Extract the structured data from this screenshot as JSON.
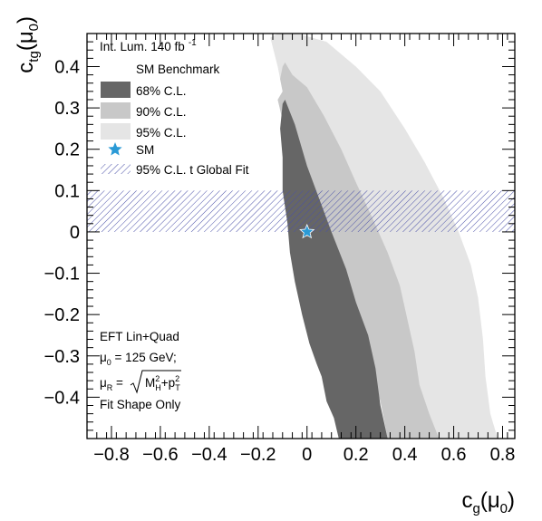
{
  "chart_data": {
    "type": "contour",
    "xlabel": {
      "main": "c",
      "sub": "g",
      "arg": "(μ",
      "arg_sub": "0",
      "close": ")"
    },
    "ylabel": {
      "main": "c",
      "sub": "tg",
      "arg": "(μ",
      "arg_sub": "0",
      "close": ")"
    },
    "xlim": [
      -0.9,
      0.85
    ],
    "ylim": [
      -0.5,
      0.48
    ],
    "x_ticks": [
      -0.8,
      -0.6,
      -0.4,
      -0.2,
      0,
      0.2,
      0.4,
      0.6,
      0.8
    ],
    "x_tick_labels": [
      "−0.8",
      "−0.6",
      "−0.4",
      "−0.2",
      "0",
      "0.2",
      "0.4",
      "0.6",
      "0.8"
    ],
    "y_ticks": [
      -0.4,
      -0.3,
      -0.2,
      -0.1,
      0,
      0.1,
      0.2,
      0.3,
      0.4
    ],
    "y_tick_labels": [
      "−0.4",
      "−0.3",
      "−0.2",
      "−0.1",
      "0",
      "0.1",
      "0.2",
      "0.3",
      "0.4"
    ],
    "regions": [
      {
        "name": "95% C.L.",
        "color": "#e5e5e5",
        "polygon": [
          [
            -0.15,
            0.47
          ],
          [
            -0.12,
            0.48
          ],
          [
            -0.04,
            0.48
          ],
          [
            0.08,
            0.46
          ],
          [
            0.2,
            0.4
          ],
          [
            0.3,
            0.34
          ],
          [
            0.4,
            0.25
          ],
          [
            0.48,
            0.17
          ],
          [
            0.56,
            0.08
          ],
          [
            0.62,
            0.0
          ],
          [
            0.67,
            -0.08
          ],
          [
            0.7,
            -0.16
          ],
          [
            0.72,
            -0.26
          ],
          [
            0.73,
            -0.35
          ],
          [
            0.75,
            -0.44
          ],
          [
            0.78,
            -0.5
          ],
          [
            0.54,
            -0.5
          ],
          [
            0.47,
            -0.4
          ],
          [
            0.4,
            -0.3
          ],
          [
            0.3,
            -0.2
          ],
          [
            0.22,
            -0.1
          ],
          [
            0.15,
            0.0
          ],
          [
            0.07,
            0.1
          ],
          [
            -0.01,
            0.2
          ],
          [
            -0.07,
            0.3
          ],
          [
            -0.1,
            0.34
          ],
          [
            -0.12,
            0.4
          ]
        ]
      },
      {
        "name": "90% C.L.",
        "color": "#c8c8c8",
        "polygon": [
          [
            -0.1,
            0.4
          ],
          [
            -0.09,
            0.41
          ],
          [
            -0.06,
            0.38
          ],
          [
            0.0,
            0.35
          ],
          [
            0.07,
            0.28
          ],
          [
            0.14,
            0.2
          ],
          [
            0.2,
            0.12
          ],
          [
            0.27,
            0.03
          ],
          [
            0.33,
            -0.05
          ],
          [
            0.38,
            -0.13
          ],
          [
            0.41,
            -0.21
          ],
          [
            0.44,
            -0.29
          ],
          [
            0.46,
            -0.37
          ],
          [
            0.5,
            -0.44
          ],
          [
            0.54,
            -0.5
          ],
          [
            0.33,
            -0.5
          ],
          [
            0.3,
            -0.41
          ],
          [
            0.26,
            -0.33
          ],
          [
            0.21,
            -0.24
          ],
          [
            0.15,
            -0.15
          ],
          [
            0.09,
            -0.08
          ],
          [
            0.04,
            0.0
          ],
          [
            -0.02,
            0.07
          ],
          [
            -0.06,
            0.13
          ],
          [
            -0.09,
            0.2
          ],
          [
            -0.1,
            0.27
          ],
          [
            -0.12,
            0.32
          ],
          [
            -0.1,
            0.34
          ],
          [
            -0.11,
            0.37
          ]
        ]
      },
      {
        "name": "68% C.L.",
        "color": "#666666",
        "polygon": [
          [
            -0.1,
            0.31
          ],
          [
            -0.09,
            0.32
          ],
          [
            -0.05,
            0.26
          ],
          [
            0.0,
            0.16
          ],
          [
            0.05,
            0.08
          ],
          [
            0.1,
            0.0
          ],
          [
            0.16,
            -0.09
          ],
          [
            0.2,
            -0.17
          ],
          [
            0.25,
            -0.25
          ],
          [
            0.28,
            -0.33
          ],
          [
            0.3,
            -0.42
          ],
          [
            0.33,
            -0.5
          ],
          [
            0.13,
            -0.5
          ],
          [
            0.11,
            -0.45
          ],
          [
            0.08,
            -0.41
          ],
          [
            0.06,
            -0.35
          ],
          [
            0.04,
            -0.32
          ],
          [
            0.01,
            -0.27
          ],
          [
            -0.02,
            -0.2
          ],
          [
            -0.05,
            -0.12
          ],
          [
            -0.07,
            -0.05
          ],
          [
            -0.08,
            0.02
          ],
          [
            -0.1,
            0.1
          ],
          [
            -0.1,
            0.18
          ],
          [
            -0.11,
            0.25
          ]
        ]
      }
    ],
    "global_fit_band": {
      "name": "95% C.L. t Global Fit",
      "color": "#4a50a8",
      "y_range": [
        0,
        0.1
      ]
    },
    "sm_point": {
      "name": "SM",
      "x": 0,
      "y": 0,
      "color": "#2a9ad6"
    },
    "legend": {
      "position": "top-left",
      "header": "Int. Lum. 140 fb",
      "header_sup": "-1",
      "subheader": "SM Benchmark",
      "entries": [
        {
          "label": "68% C.L.",
          "kind": "fill",
          "color": "#666666"
        },
        {
          "label": "90% C.L.",
          "kind": "fill",
          "color": "#c8c8c8"
        },
        {
          "label": "95% C.L.",
          "kind": "fill",
          "color": "#e5e5e5"
        },
        {
          "label": "SM",
          "kind": "star",
          "color": "#2a9ad6"
        },
        {
          "label": "95% C.L. t Global Fit",
          "kind": "hatch",
          "color": "#4a50a8"
        }
      ]
    },
    "annotation": {
      "position": "bottom-left",
      "line1": "EFT Lin+Quad",
      "line2_main": "μ",
      "line2_sub": "0",
      "line2_rest": " = 125 GeV;",
      "line3_main": "μ",
      "line3_sub": "R",
      "line3_eq": " =",
      "line3_M": "M",
      "line3_M_sup": "2",
      "line3_M_sub": "H",
      "line3_plus": "+p",
      "line3_p_sup": "2",
      "line3_p_sub": "T",
      "line4": "Fit Shape Only"
    }
  }
}
